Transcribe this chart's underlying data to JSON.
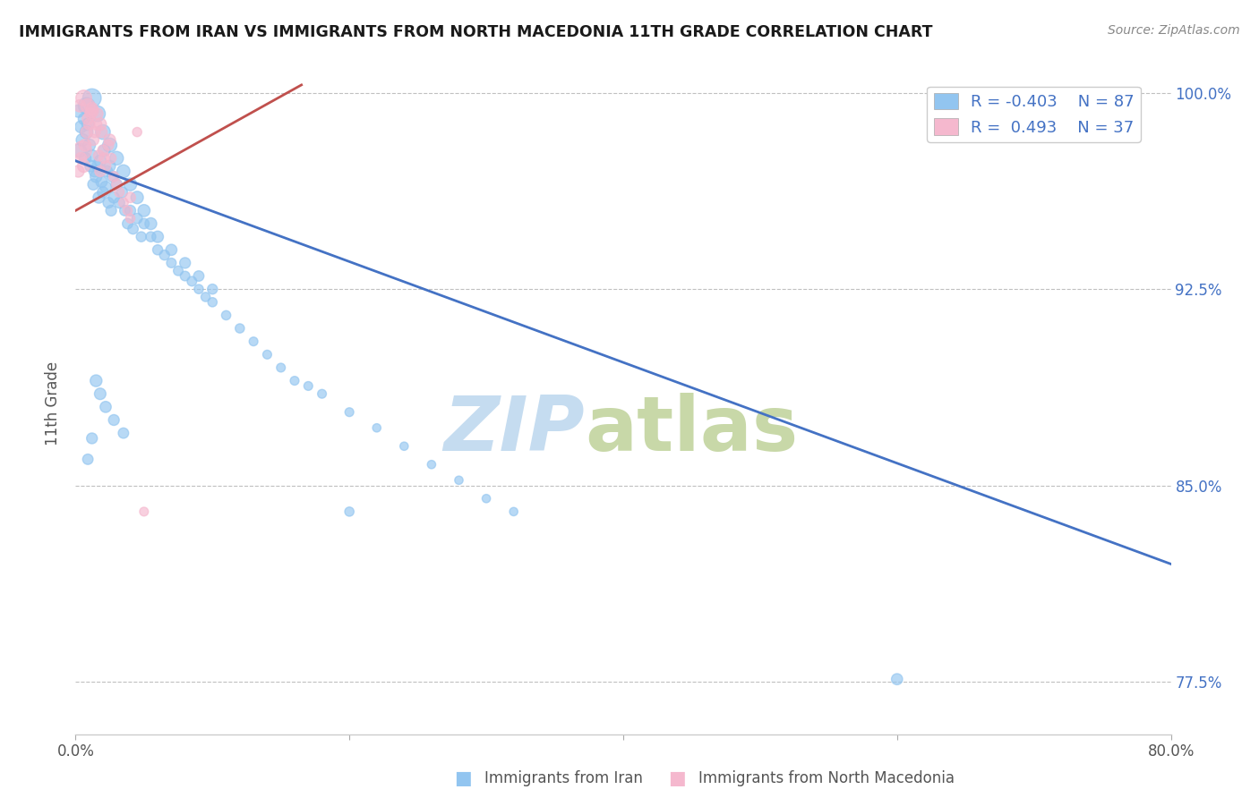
{
  "title": "IMMIGRANTS FROM IRAN VS IMMIGRANTS FROM NORTH MACEDONIA 11TH GRADE CORRELATION CHART",
  "source_text": "Source: ZipAtlas.com",
  "ylabel": "11th Grade",
  "x_label_iran": "Immigrants from Iran",
  "x_label_macedonia": "Immigrants from North Macedonia",
  "xlim": [
    0.0,
    0.8
  ],
  "ylim": [
    0.755,
    1.008
  ],
  "x_ticks": [
    0.0,
    0.2,
    0.4,
    0.6,
    0.8
  ],
  "x_tick_labels": [
    "0.0%",
    "",
    "",
    "",
    "80.0%"
  ],
  "y_ticks_right": [
    0.775,
    0.85,
    0.925,
    1.0
  ],
  "y_tick_labels_right": [
    "77.5%",
    "85.0%",
    "92.5%",
    "100.0%"
  ],
  "iran_R": -0.403,
  "iran_N": 87,
  "macedonia_R": 0.493,
  "macedonia_N": 37,
  "blue_color": "#92C5F0",
  "pink_color": "#F5B8CE",
  "blue_line_color": "#4472C4",
  "pink_line_color": "#C0504D",
  "legend_text_color": "#4472C4",
  "blue_line_x": [
    0.0,
    0.8
  ],
  "blue_line_y": [
    0.974,
    0.82
  ],
  "pink_line_x": [
    0.0,
    0.165
  ],
  "pink_line_y": [
    0.955,
    1.003
  ],
  "grid_color": "#C0C0C0",
  "background_color": "#FFFFFF",
  "iran_scatter_x": [
    0.003,
    0.005,
    0.006,
    0.007,
    0.008,
    0.009,
    0.01,
    0.011,
    0.012,
    0.013,
    0.014,
    0.015,
    0.016,
    0.017,
    0.018,
    0.019,
    0.02,
    0.021,
    0.022,
    0.023,
    0.024,
    0.025,
    0.026,
    0.027,
    0.028,
    0.03,
    0.032,
    0.034,
    0.036,
    0.038,
    0.04,
    0.042,
    0.045,
    0.048,
    0.05,
    0.055,
    0.06,
    0.065,
    0.07,
    0.075,
    0.08,
    0.085,
    0.09,
    0.095,
    0.1,
    0.11,
    0.12,
    0.13,
    0.14,
    0.15,
    0.16,
    0.17,
    0.18,
    0.2,
    0.22,
    0.24,
    0.26,
    0.28,
    0.3,
    0.32,
    0.002,
    0.004,
    0.008,
    0.012,
    0.016,
    0.02,
    0.025,
    0.03,
    0.035,
    0.04,
    0.045,
    0.05,
    0.055,
    0.06,
    0.07,
    0.08,
    0.09,
    0.1,
    0.6,
    0.2,
    0.035,
    0.028,
    0.022,
    0.018,
    0.015,
    0.012,
    0.009
  ],
  "iran_scatter_y": [
    0.978,
    0.982,
    0.99,
    0.975,
    0.985,
    0.988,
    0.98,
    0.972,
    0.976,
    0.965,
    0.97,
    0.968,
    0.972,
    0.96,
    0.974,
    0.966,
    0.962,
    0.978,
    0.964,
    0.97,
    0.958,
    0.972,
    0.955,
    0.968,
    0.96,
    0.965,
    0.958,
    0.962,
    0.955,
    0.95,
    0.955,
    0.948,
    0.952,
    0.945,
    0.95,
    0.945,
    0.94,
    0.938,
    0.935,
    0.932,
    0.93,
    0.928,
    0.925,
    0.922,
    0.92,
    0.915,
    0.91,
    0.905,
    0.9,
    0.895,
    0.89,
    0.888,
    0.885,
    0.878,
    0.872,
    0.865,
    0.858,
    0.852,
    0.845,
    0.84,
    0.993,
    0.987,
    0.995,
    0.998,
    0.992,
    0.985,
    0.98,
    0.975,
    0.97,
    0.965,
    0.96,
    0.955,
    0.95,
    0.945,
    0.94,
    0.935,
    0.93,
    0.925,
    0.776,
    0.84,
    0.87,
    0.875,
    0.88,
    0.885,
    0.89,
    0.868,
    0.86
  ],
  "iran_scatter_s": [
    120,
    100,
    80,
    90,
    110,
    95,
    100,
    85,
    90,
    80,
    85,
    90,
    80,
    85,
    90,
    85,
    80,
    90,
    85,
    80,
    75,
    85,
    75,
    80,
    80,
    80,
    75,
    75,
    70,
    70,
    75,
    70,
    70,
    65,
    70,
    65,
    65,
    65,
    60,
    60,
    60,
    60,
    55,
    55,
    55,
    55,
    55,
    50,
    50,
    50,
    50,
    50,
    50,
    50,
    45,
    45,
    45,
    45,
    45,
    45,
    100,
    95,
    180,
    220,
    160,
    140,
    130,
    120,
    110,
    105,
    100,
    95,
    90,
    85,
    80,
    75,
    70,
    65,
    80,
    55,
    70,
    75,
    80,
    85,
    90,
    75,
    70
  ],
  "macedonia_scatter_x": [
    0.002,
    0.004,
    0.005,
    0.006,
    0.007,
    0.008,
    0.009,
    0.01,
    0.011,
    0.012,
    0.013,
    0.014,
    0.015,
    0.016,
    0.017,
    0.018,
    0.019,
    0.02,
    0.021,
    0.022,
    0.024,
    0.026,
    0.028,
    0.03,
    0.032,
    0.035,
    0.038,
    0.04,
    0.045,
    0.05,
    0.003,
    0.006,
    0.009,
    0.012,
    0.018,
    0.025,
    0.04
  ],
  "macedonia_scatter_y": [
    0.97,
    0.975,
    0.978,
    0.972,
    0.98,
    0.985,
    0.99,
    0.988,
    0.992,
    0.994,
    0.982,
    0.985,
    0.988,
    0.992,
    0.976,
    0.97,
    0.985,
    0.978,
    0.975,
    0.972,
    0.98,
    0.975,
    0.968,
    0.965,
    0.962,
    0.958,
    0.955,
    0.952,
    0.985,
    0.84,
    0.995,
    0.998,
    0.995,
    0.993,
    0.988,
    0.982,
    0.96
  ],
  "macedonia_scatter_s": [
    90,
    85,
    220,
    100,
    95,
    90,
    85,
    80,
    85,
    90,
    80,
    80,
    85,
    80,
    75,
    75,
    80,
    75,
    70,
    70,
    70,
    65,
    65,
    65,
    60,
    60,
    55,
    55,
    55,
    50,
    95,
    160,
    130,
    110,
    100,
    85,
    70
  ]
}
